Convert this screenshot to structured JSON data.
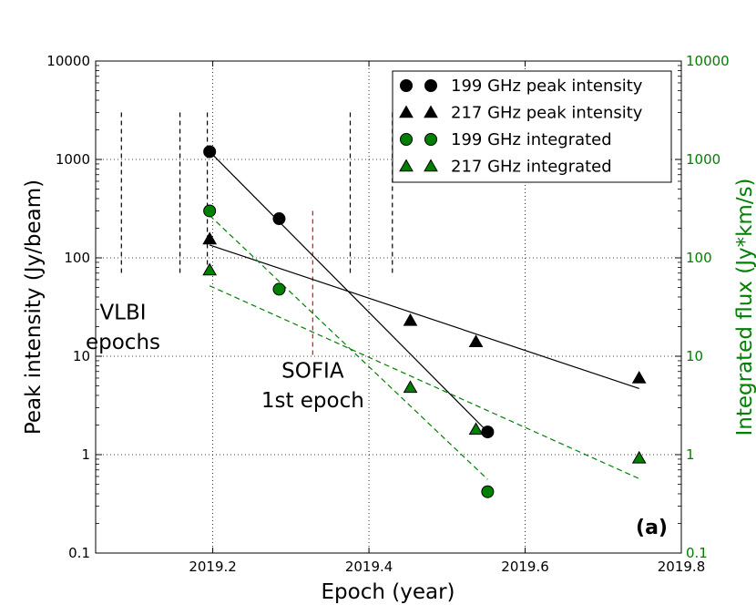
{
  "chart_data": {
    "type": "scatter",
    "panel_label": "(a)",
    "xlabel": "Epoch (year)",
    "ylabel_left": "Peak intensity (Jy/beam)",
    "ylabel_right": "Integrated flux (Jy*km/s)",
    "xlim": [
      2019.05,
      2019.8
    ],
    "ylim": [
      0.1,
      10000
    ],
    "y_scale": "log",
    "grid": "dotted",
    "x_ticks": [
      {
        "value": 2019.2,
        "label": "2019.2"
      },
      {
        "value": 2019.4,
        "label": "2019.4"
      },
      {
        "value": 2019.6,
        "label": "2019.6"
      },
      {
        "value": 2019.8,
        "label": "2019.8"
      }
    ],
    "y_ticks_left": [
      {
        "value": 0.1,
        "label": "0.1"
      },
      {
        "value": 1,
        "label": "1"
      },
      {
        "value": 10,
        "label": "10"
      },
      {
        "value": 100,
        "label": "100"
      },
      {
        "value": 1000,
        "label": "1000"
      },
      {
        "value": 10000,
        "label": "10000"
      }
    ],
    "y_ticks_right": [
      {
        "value": 0.1,
        "label": "0.1"
      },
      {
        "value": 1,
        "label": "1"
      },
      {
        "value": 10,
        "label": "10"
      },
      {
        "value": 100,
        "label": "100"
      },
      {
        "value": 1000,
        "label": "1000"
      },
      {
        "value": 10000,
        "label": "10000"
      }
    ],
    "legend_position": "top-right",
    "series": [
      {
        "name": "199 GHz peak intensity",
        "marker": "circle",
        "color": "#000000",
        "x": [
          2019.196,
          2019.285,
          2019.552
        ],
        "y": [
          1200,
          250,
          1.7
        ]
      },
      {
        "name": "217 GHz peak intensity",
        "marker": "triangle",
        "color": "#000000",
        "x": [
          2019.196,
          2019.453,
          2019.537,
          2019.746
        ],
        "y": [
          155,
          23,
          14,
          6
        ]
      },
      {
        "name": "199 GHz integrated",
        "marker": "circle",
        "color": "#008000",
        "x": [
          2019.196,
          2019.285,
          2019.552
        ],
        "y": [
          300,
          48,
          0.42
        ]
      },
      {
        "name": "217 GHz integrated",
        "marker": "triangle",
        "color": "#008000",
        "x": [
          2019.196,
          2019.453,
          2019.537,
          2019.746
        ],
        "y": [
          75,
          4.8,
          1.8,
          0.92
        ]
      }
    ],
    "fit_lines": [
      {
        "series": "199 GHz peak intensity",
        "style": "solid",
        "color": "#000000",
        "x": [
          2019.196,
          2019.552
        ],
        "y": [
          1200,
          1.7
        ]
      },
      {
        "series": "217 GHz peak intensity",
        "style": "solid",
        "color": "#000000",
        "x": [
          2019.196,
          2019.746
        ],
        "y": [
          135,
          4.7
        ]
      },
      {
        "series": "199 GHz integrated",
        "style": "dashed",
        "color": "#008000",
        "x": [
          2019.196,
          2019.552
        ],
        "y": [
          270,
          0.56
        ]
      },
      {
        "series": "217 GHz integrated",
        "style": "dashed",
        "color": "#008000",
        "x": [
          2019.196,
          2019.746
        ],
        "y": [
          52,
          0.57
        ]
      }
    ],
    "epoch_markers": [
      {
        "group": "VLBI",
        "color": "#000000",
        "x": 2019.083,
        "y_range": [
          65,
          3000
        ]
      },
      {
        "group": "VLBI",
        "color": "#000000",
        "x": 2019.158,
        "y_range": [
          65,
          3000
        ]
      },
      {
        "group": "VLBI",
        "color": "#000000",
        "x": 2019.193,
        "y_range": [
          65,
          3000
        ]
      },
      {
        "group": "VLBI",
        "color": "#000000",
        "x": 2019.376,
        "y_range": [
          65,
          3000
        ]
      },
      {
        "group": "VLBI",
        "color": "#000000",
        "x": 2019.43,
        "y_range": [
          65,
          3000
        ]
      },
      {
        "group": "SOFIA",
        "color": "#ff0000",
        "x": 2019.328,
        "y_range": [
          10,
          300
        ]
      }
    ],
    "annotations": [
      {
        "text": "VLBI",
        "x": 2019.085,
        "y": 28
      },
      {
        "text": "epochs",
        "x": 2019.085,
        "y": 14
      },
      {
        "text": "SOFIA",
        "x": 2019.328,
        "y": 7.2
      },
      {
        "text": "1st epoch",
        "x": 2019.328,
        "y": 3.6
      }
    ]
  }
}
